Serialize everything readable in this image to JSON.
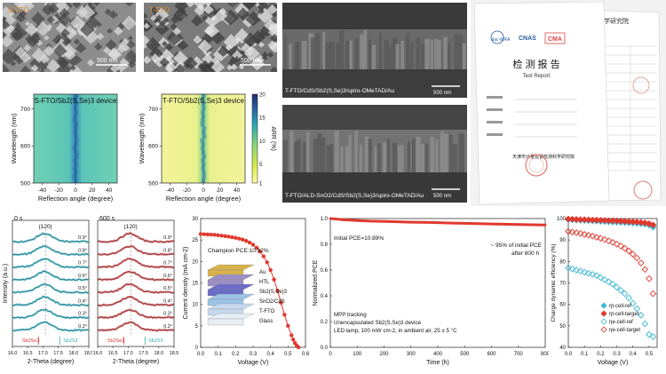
{
  "sem": {
    "left_label": "S-FTO",
    "left_scale": "500 nm",
    "mid_label": "T-FTO",
    "mid_scale": "500 nm"
  },
  "cross_sections": {
    "top_caption": "T-FTO/CdS/Sb2(S,Se)3/spiro-OMeTAD/Au",
    "top_scale": "500 nm",
    "bottom_caption": "T-FTO/ALD-SnO2/CdS/Sb2(S,Se)3/spiro-OMeTAD/Au",
    "bottom_scale": "500 nm"
  },
  "report": {
    "title_cn": "检 测 报 告",
    "title_en": "Test Report",
    "institute_cn": "天津市计量监督检测科学研究院",
    "side_header": "学研究院",
    "logos": [
      "ilac-MRA",
      "CNAS",
      "CMA"
    ]
  },
  "chart_data": [
    {
      "type": "heatmap",
      "title": "S-FTO/Sb2(S,Se)3 device",
      "xlabel": "Reflection angle (degree)",
      "ylabel": "Wavelength (nm)",
      "xlim": [
        -50,
        50
      ],
      "ylim": [
        500,
        740
      ],
      "xticks": [
        "-40",
        "-20",
        "0",
        "20",
        "40"
      ],
      "yticks": [
        "500",
        "600",
        "700"
      ]
    },
    {
      "type": "heatmap",
      "title": "T-FTO/Sb2(S,Se)3 device",
      "xlabel": "Reflection angle (degree)",
      "ylabel": "Wavelength (nm)",
      "xlim": [
        -50,
        50
      ],
      "ylim": [
        500,
        740
      ],
      "xticks": [
        "-40",
        "-20",
        "0",
        "20",
        "40"
      ],
      "yticks": [
        "500",
        "600",
        "700"
      ],
      "colorbar": {
        "label": "ARR (%)",
        "ticks": [
          "1",
          "5",
          "10",
          "15",
          "20"
        ],
        "colors": [
          "#fffaa0",
          "#d8ea4a",
          "#7cd27c",
          "#2aa8b2",
          "#2a5e9e",
          "#1f2a6e"
        ]
      }
    },
    {
      "type": "line",
      "title": "0 s",
      "xlabel": "2-Theta (degree)",
      "ylabel": "Intensity (a.u.)",
      "xlim": [
        16.0,
        18.5
      ],
      "xticks": [
        "16.0",
        "16.5",
        "17.0",
        "17.5",
        "18.0",
        "18.5"
      ],
      "peak_label": "(120)",
      "ref_labels": [
        "Sb2Se3",
        "Sb2S3"
      ],
      "series_labels": [
        "0.9°",
        "0.8°",
        "0.7°",
        "0.6°",
        "0.5°",
        "0.4°",
        "0.3°",
        "0.2°"
      ],
      "color": "#3fb7c9"
    },
    {
      "type": "line",
      "title": "600 s",
      "xlabel": "2-Theta (degree)",
      "xlim": [
        16.0,
        18.5
      ],
      "xticks": [
        "16.0",
        "16.5",
        "17.0",
        "17.5",
        "18.0",
        "18.5"
      ],
      "peak_label": "(120)",
      "ref_labels": [
        "Sb2Se3",
        "Sb2S3"
      ],
      "series_labels": [
        "0.9°",
        "0.8°",
        "0.7°",
        "0.6°",
        "0.5°",
        "0.4°",
        "0.3°",
        "0.2°"
      ],
      "color": "#d34a4a"
    },
    {
      "type": "line",
      "xlabel": "Voltage (V)",
      "ylabel": "Current density (mA cm-2)",
      "xlim": [
        0.0,
        0.6
      ],
      "ylim": [
        0,
        30
      ],
      "xticks": [
        "0.0",
        "0.1",
        "0.2",
        "0.3",
        "0.4",
        "0.5",
        "0.6"
      ],
      "yticks": [
        "0",
        "5",
        "10",
        "15",
        "20",
        "25",
        "30"
      ],
      "annotation": "Champion PCE:10.92%",
      "layers": [
        "Au",
        "HTL",
        "Sb2(S,Se)3",
        "SnO2/CdS",
        "T-FTO",
        "Glass"
      ],
      "x": [
        0.0,
        0.02,
        0.04,
        0.06,
        0.08,
        0.1,
        0.12,
        0.14,
        0.16,
        0.18,
        0.2,
        0.22,
        0.24,
        0.26,
        0.28,
        0.3,
        0.32,
        0.34,
        0.36,
        0.38,
        0.4,
        0.42,
        0.44,
        0.46,
        0.48,
        0.5,
        0.52,
        0.53,
        0.54,
        0.55,
        0.56
      ],
      "y": [
        26.4,
        26.35,
        26.3,
        26.25,
        26.2,
        26.1,
        26.0,
        25.9,
        25.8,
        25.65,
        25.5,
        25.3,
        25.1,
        24.8,
        24.4,
        23.9,
        23.2,
        22.3,
        21.2,
        19.8,
        18.0,
        15.8,
        13.2,
        10.4,
        7.6,
        5.0,
        2.8,
        1.8,
        1.0,
        0.4,
        0.0
      ],
      "color": "#e0392e"
    },
    {
      "type": "line",
      "xlabel": "Time (h)",
      "ylabel": "Normalized PCE",
      "xlim": [
        0,
        800
      ],
      "ylim": [
        0.0,
        1.0
      ],
      "xticks": [
        "0",
        "100",
        "200",
        "300",
        "400",
        "500",
        "600",
        "700",
        "800"
      ],
      "yticks": [
        "0.0",
        "0.2",
        "0.4",
        "0.6",
        "0.8",
        "1.0"
      ],
      "annotations": [
        "Initial PCE=10.89%",
        "~ 95% of initial PCE",
        "after 800 h"
      ],
      "notes": [
        "MPP tracking",
        "Unencapsulated Sb2(S,Se)3 device",
        "LED lamp, 100 mW cm-2, in ambient air, 25 ± 5 °C"
      ],
      "x": [
        0,
        50,
        100,
        150,
        200,
        250,
        300,
        350,
        400,
        450,
        500,
        550,
        600,
        650,
        700,
        750,
        800
      ],
      "y": [
        1.0,
        0.99,
        0.985,
        0.98,
        0.978,
        0.975,
        0.972,
        0.97,
        0.968,
        0.965,
        0.963,
        0.96,
        0.958,
        0.956,
        0.954,
        0.952,
        0.95
      ],
      "color": "#e0392e"
    },
    {
      "type": "scatter",
      "xlabel": "Voltage (V)",
      "ylabel": "Charge dynamic efficiency (%)",
      "xlim": [
        0.0,
        0.55
      ],
      "ylim": [
        40,
        100
      ],
      "xticks": [
        "0.0",
        "0.1",
        "0.2",
        "0.3",
        "0.4",
        "0.5"
      ],
      "yticks": [
        "40",
        "50",
        "60",
        "70",
        "80",
        "90",
        "100"
      ],
      "x": [
        0.0,
        0.025,
        0.05,
        0.075,
        0.1,
        0.125,
        0.15,
        0.175,
        0.2,
        0.225,
        0.25,
        0.275,
        0.3,
        0.325,
        0.35,
        0.375,
        0.4,
        0.425,
        0.45,
        0.475,
        0.5,
        0.525
      ],
      "series": [
        {
          "name": "ηt-cell-ref",
          "marker": "filled-diamond",
          "color": "#3db8d6",
          "values": [
            99.5,
            99.4,
            99.3,
            99.2,
            99.1,
            99.0,
            98.9,
            98.8,
            98.7,
            98.6,
            98.5,
            98.4,
            98.3,
            98.2,
            98.1,
            98.0,
            97.9,
            97.8,
            97.6,
            97.4,
            97.0,
            96.0
          ]
        },
        {
          "name": "ηt-cell-target",
          "marker": "filled-diamond",
          "color": "#e0392e",
          "values": [
            99.8,
            99.7,
            99.6,
            99.5,
            99.5,
            99.4,
            99.3,
            99.3,
            99.2,
            99.1,
            99.0,
            99.0,
            98.9,
            98.8,
            98.7,
            98.6,
            98.5,
            98.4,
            98.2,
            98.0,
            97.6,
            97.0
          ]
        },
        {
          "name": "ηe-cell-ref",
          "marker": "open-diamond",
          "color": "#3db8d6",
          "values": [
            77,
            76.5,
            76,
            75.5,
            75,
            74.5,
            74,
            73.5,
            72.5,
            71.5,
            70.5,
            69.5,
            68,
            66.5,
            65,
            63,
            60.5,
            58,
            55,
            51,
            46,
            45
          ]
        },
        {
          "name": "ηe-cell-target",
          "marker": "open-diamond",
          "color": "#e0392e",
          "values": [
            94,
            93.7,
            93.4,
            93,
            92.6,
            92.2,
            91.8,
            91.3,
            90.8,
            90.2,
            89.6,
            88.9,
            88.1,
            87.2,
            86.1,
            84.9,
            83.4,
            81.6,
            79.3,
            76.3,
            72,
            65
          ]
        }
      ]
    }
  ]
}
